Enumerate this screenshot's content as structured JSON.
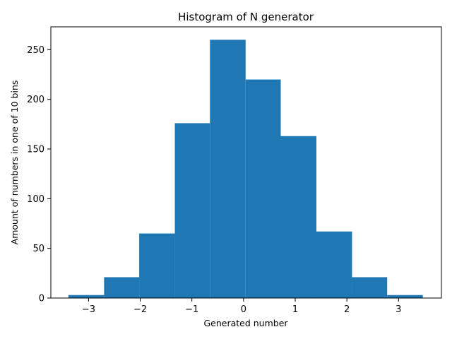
{
  "chart_data": {
    "type": "bar",
    "title": "Histogram of N generator",
    "xlabel": "Generated number",
    "ylabel": "Amount of numbers in one of 10 bins",
    "xlim": [
      -3.73,
      3.83
    ],
    "ylim": [
      0,
      273
    ],
    "xticks": [
      -3,
      -2,
      -1,
      0,
      1,
      2,
      3
    ],
    "xtick_labels": [
      "−3",
      "−2",
      "−1",
      "0",
      "1",
      "2",
      "3"
    ],
    "yticks": [
      0,
      50,
      100,
      150,
      200,
      250
    ],
    "bin_edges": [
      -3.39,
      -2.7,
      -2.02,
      -1.33,
      -0.65,
      0.04,
      0.72,
      1.41,
      2.1,
      2.78,
      3.47
    ],
    "values": [
      3,
      21,
      65,
      176,
      260,
      220,
      163,
      67,
      21,
      3
    ],
    "bar_color": "#1f77b4",
    "grid": false,
    "legend": "none"
  }
}
